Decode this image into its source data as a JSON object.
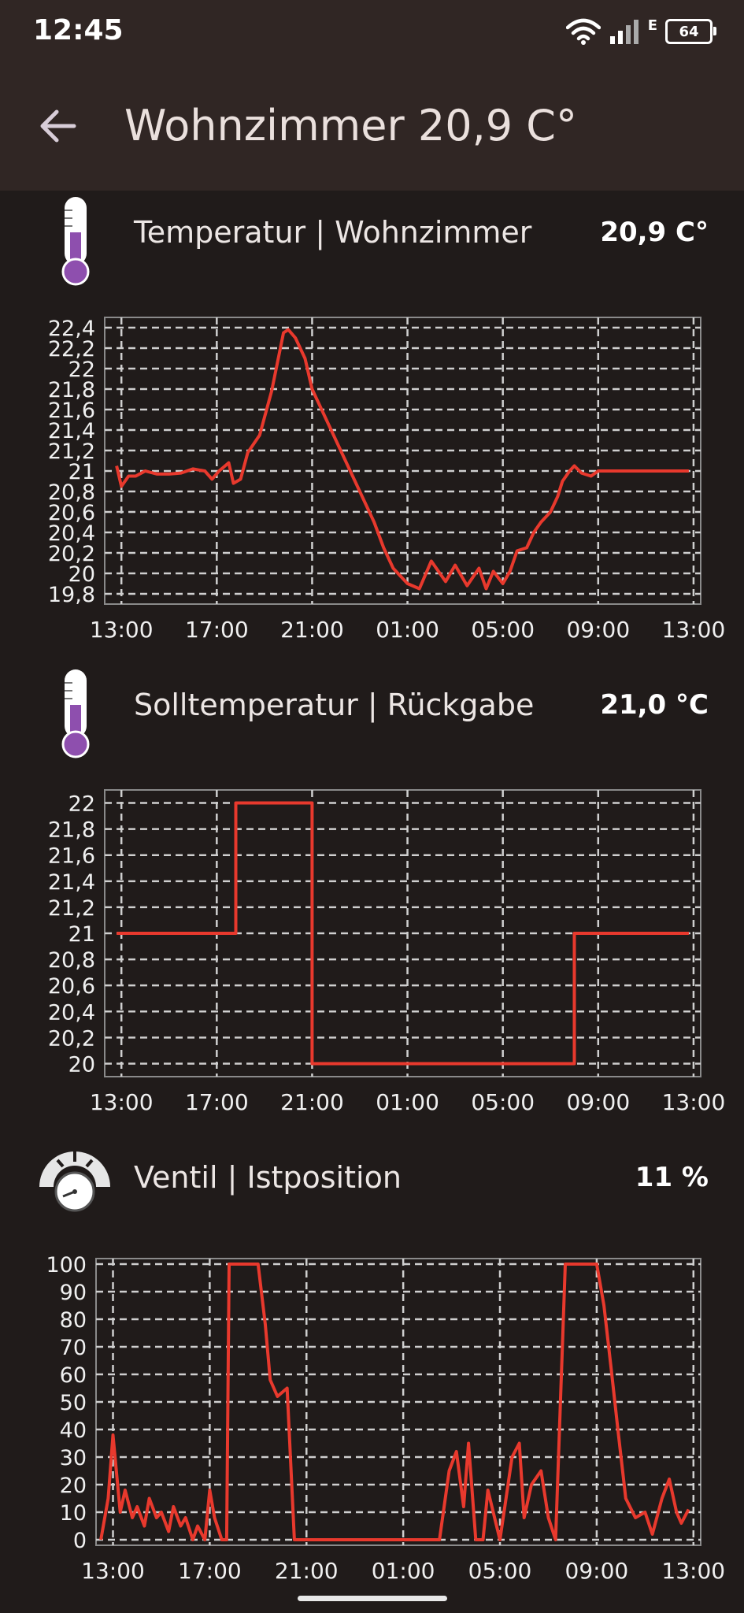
{
  "status_bar": {
    "time": "12:45",
    "network_label": "E",
    "battery": "64"
  },
  "app_bar": {
    "title": "Wohnzimmer 20,9 C°"
  },
  "sections": [
    {
      "label": "Temperatur | Wohnzimmer",
      "value": "20,9 C°",
      "icon": "thermometer-icon"
    },
    {
      "label": "Solltemperatur | Rückgabe",
      "value": "21,0 °C",
      "icon": "thermometer-icon"
    },
    {
      "label": "Ventil | Istposition",
      "value": "11 %",
      "icon": "gauge-icon"
    }
  ],
  "colors": {
    "line": "#e8392d",
    "thermometer": "#8e4fae",
    "grid": "#cfcfcf",
    "background": "#201b1a",
    "appbar": "#302624"
  },
  "chart_data": [
    {
      "type": "line",
      "x_tick_labels": [
        "13:00",
        "17:00",
        "21:00",
        "01:00",
        "05:00",
        "09:00",
        "13:00"
      ],
      "y_tick_labels": [
        "19,8",
        "20",
        "20,2",
        "20,4",
        "20,6",
        "20,8",
        "21",
        "21,2",
        "21,4",
        "21,6",
        "21,8",
        "22",
        "22,2",
        "22,4"
      ],
      "ylim": [
        19.7,
        22.5
      ],
      "grid": true,
      "series": [
        {
          "x": [
            -0.2,
            0,
            0.3,
            0.6,
            1,
            1.5,
            2,
            2.5,
            3,
            3.5,
            3.8,
            4.1,
            4.5,
            4.7,
            5,
            5.3,
            5.8,
            6.3,
            6.8,
            7,
            7.3,
            7.7,
            8,
            8.4,
            9,
            9.4,
            10,
            10.6,
            11,
            11.4,
            12,
            12.5,
            13,
            13.6,
            14,
            14.5,
            15,
            15.3,
            15.6,
            16,
            16.3,
            16.6,
            17,
            17.3,
            17.6,
            18,
            18.3,
            18.5,
            18.8,
            19,
            19.3,
            19.7,
            20,
            20.5,
            21,
            21.5,
            22,
            22.5,
            23,
            23.5,
            23.8
          ],
          "values": [
            21.05,
            20.85,
            20.95,
            20.95,
            21.0,
            20.97,
            20.97,
            20.98,
            21.02,
            21.0,
            20.92,
            21.0,
            21.08,
            20.88,
            20.92,
            21.18,
            21.35,
            21.78,
            22.35,
            22.38,
            22.3,
            22.1,
            21.8,
            21.6,
            21.3,
            21.1,
            20.8,
            20.5,
            20.25,
            20.05,
            19.9,
            19.85,
            20.12,
            19.92,
            20.08,
            19.88,
            20.05,
            19.85,
            20.02,
            19.9,
            20.02,
            20.22,
            20.25,
            20.4,
            20.5,
            20.6,
            20.75,
            20.9,
            21.0,
            21.05,
            20.98,
            20.95,
            21.0,
            21.0,
            21.0,
            21.0,
            21.0,
            21.0,
            21.0,
            21.0,
            21.0
          ]
        }
      ]
    },
    {
      "type": "line",
      "x_tick_labels": [
        "13:00",
        "17:00",
        "21:00",
        "01:00",
        "05:00",
        "09:00",
        "13:00"
      ],
      "y_tick_labels": [
        "20",
        "20,2",
        "20,4",
        "20,6",
        "20,8",
        "21",
        "21,2",
        "21,4",
        "21,6",
        "21,8",
        "22"
      ],
      "ylim": [
        19.9,
        22.1
      ],
      "grid": true,
      "series": [
        {
          "x": [
            -0.2,
            4.8,
            4.8,
            8,
            8,
            19,
            19,
            23.8
          ],
          "values": [
            21,
            21,
            22,
            22,
            20,
            20,
            21,
            21
          ]
        }
      ]
    },
    {
      "type": "line",
      "x_tick_labels": [
        "13:00",
        "17:00",
        "21:00",
        "01:00",
        "05:00",
        "09:00",
        "13:00"
      ],
      "y_tick_labels": [
        "0",
        "10",
        "20",
        "30",
        "40",
        "50",
        "60",
        "70",
        "80",
        "90",
        "100"
      ],
      "ylim": [
        -2,
        102
      ],
      "grid": true,
      "series": [
        {
          "x": [
            -0.5,
            -0.2,
            0,
            0.3,
            0.5,
            0.8,
            1,
            1.3,
            1.5,
            1.8,
            2,
            2.3,
            2.5,
            2.8,
            3,
            3.3,
            3.5,
            3.8,
            4,
            4.2,
            4.5,
            4.7,
            4.8,
            5.2,
            6,
            6.3,
            6.5,
            6.8,
            7.2,
            7.5,
            8.0,
            11,
            13.5,
            13.9,
            14.2,
            14.5,
            14.7,
            15,
            15.3,
            15.5,
            16,
            16.2,
            16.5,
            16.8,
            17,
            17.3,
            17.7,
            18,
            18.3,
            18.7,
            19,
            19.3,
            20,
            20.3,
            20.6,
            20.9,
            21.2,
            21.6,
            22,
            22.3,
            22.7,
            23,
            23.3,
            23.5,
            23.8
          ],
          "values": [
            0,
            15,
            38,
            10,
            18,
            8,
            12,
            5,
            15,
            8,
            10,
            3,
            12,
            5,
            8,
            0,
            5,
            0,
            18,
            8,
            0,
            0,
            100,
            100,
            100,
            78,
            58,
            52,
            55,
            0,
            0,
            0,
            0,
            25,
            32,
            12,
            35,
            0,
            0,
            18,
            0,
            12,
            30,
            35,
            8,
            20,
            25,
            8,
            0,
            100,
            100,
            100,
            100,
            85,
            62,
            38,
            15,
            8,
            10,
            2,
            15,
            22,
            10,
            6,
            11
          ]
        }
      ]
    }
  ]
}
